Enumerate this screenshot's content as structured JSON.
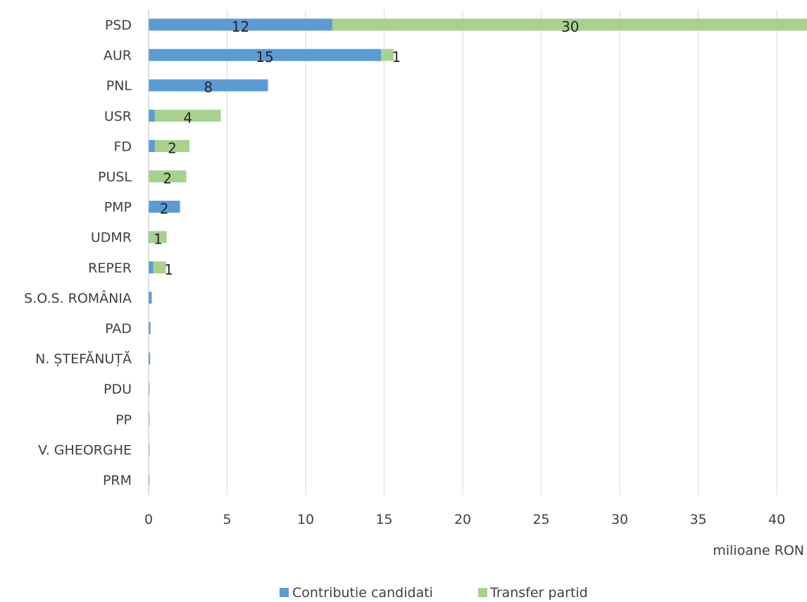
{
  "chart_data": {
    "type": "bar",
    "orientation": "horizontal",
    "stacked": true,
    "title": "",
    "xlabel": "milioane RON",
    "ylabel": "",
    "xlim": [
      0,
      41.7
    ],
    "xticks": [
      0,
      5,
      10,
      15,
      20,
      25,
      30,
      35,
      40
    ],
    "grid": true,
    "legend_position": "bottom",
    "categories": [
      "PSD",
      "AUR",
      "PNL",
      "USR",
      "FD",
      "PUSL",
      "PMP",
      "UDMR",
      "REPER",
      "S.O.S. ROMÂNIA",
      "PAD",
      "N. ȘTEFĂNUȚĂ",
      "PDU",
      "PP",
      "V. GHEORGHE",
      "PRM"
    ],
    "series": [
      {
        "name": "Contributie candidati",
        "color": "#5b9bd5",
        "values": [
          11.7,
          14.8,
          7.6,
          0.4,
          0.4,
          0.0,
          2.0,
          0.05,
          0.3,
          0.2,
          0.12,
          0.1,
          0.0,
          0.02,
          0.02,
          0.01
        ],
        "labels": [
          "12",
          "15",
          "8",
          "",
          "",
          "",
          "2",
          "",
          "",
          "",
          "",
          "",
          "",
          "",
          "",
          ""
        ]
      },
      {
        "name": "Transfer partid",
        "color": "#a9d18e",
        "values": [
          30.3,
          0.8,
          0.0,
          4.2,
          2.2,
          2.4,
          0.0,
          1.1,
          0.8,
          0.0,
          0.0,
          0.0,
          0.08,
          0.02,
          0.02,
          0.01
        ],
        "labels": [
          "30",
          "1",
          "",
          "4",
          "2",
          "2",
          "",
          "1",
          "1",
          "",
          "",
          "",
          "",
          "",
          "",
          ""
        ]
      }
    ]
  }
}
